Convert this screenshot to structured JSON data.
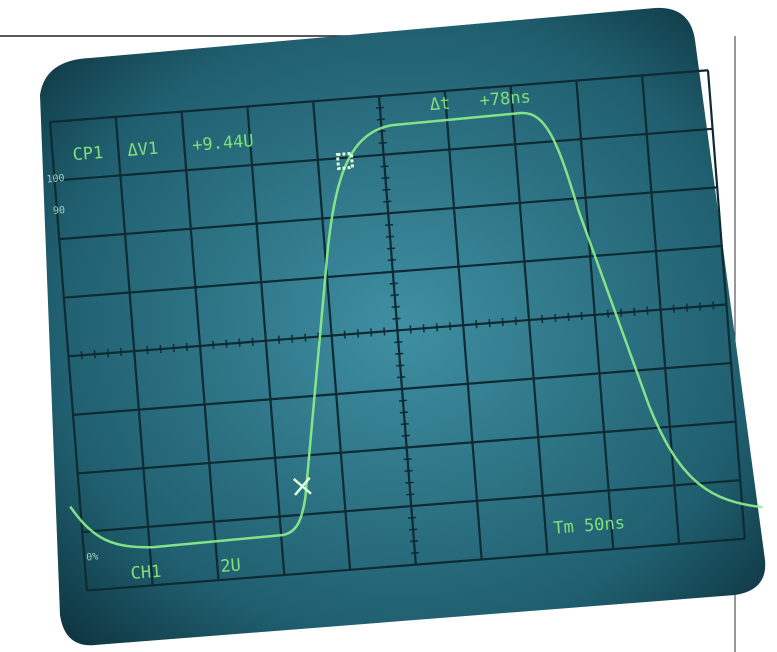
{
  "screen": {
    "readout_top": {
      "channel": "CP1",
      "delta_v_label": "ΔV1",
      "delta_v": "+9.44U",
      "delta_t_label": "Δt",
      "delta_t": "+78ns"
    },
    "left_scale": {
      "top": "100",
      "upper": "90",
      "bottom": "0%"
    },
    "readout_bottom": {
      "channel": "CH1",
      "volts_per_div": "2U",
      "timebase": "Tm 50ns"
    }
  }
}
